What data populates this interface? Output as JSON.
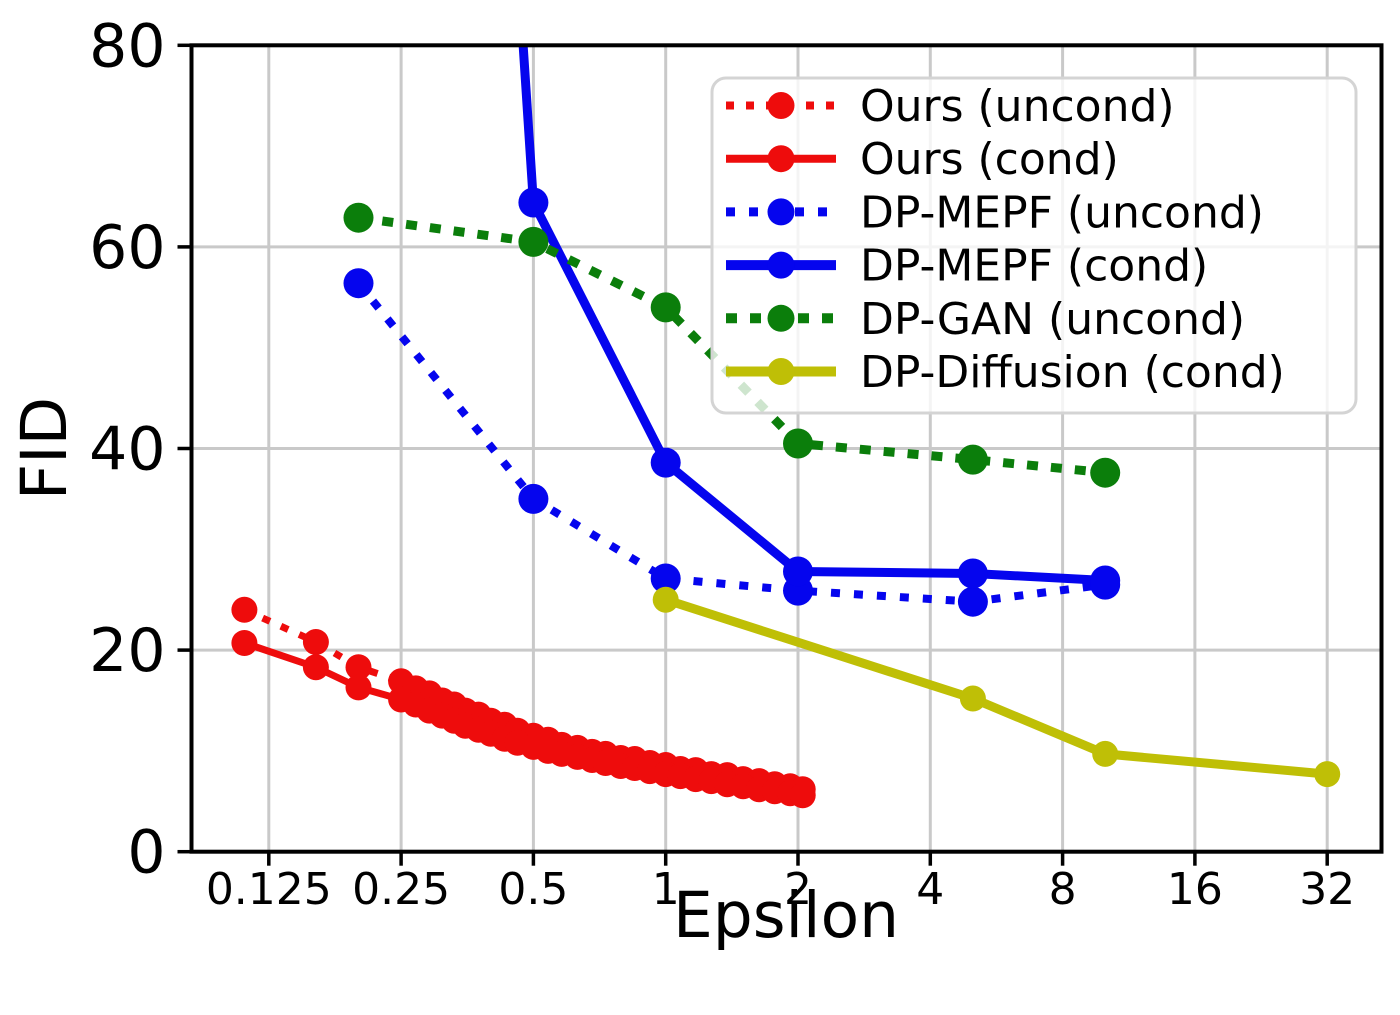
{
  "figure": {
    "kind": "matplotlib-style line chart",
    "background": "#ffffff"
  },
  "chart_data": {
    "type": "line",
    "title": "",
    "xlabel": "Epsilon",
    "ylabel": "FID",
    "x_scale": "log2",
    "ylim": [
      0,
      80
    ],
    "grid": true,
    "grid_color": "#c9c9c9",
    "legend_position": "upper right",
    "x_ticks": [
      {
        "label": "0.125",
        "value": 0.125
      },
      {
        "label": "0.25",
        "value": 0.25
      },
      {
        "label": "0.5",
        "value": 0.5
      },
      {
        "label": "1",
        "value": 1
      },
      {
        "label": "2",
        "value": 2
      },
      {
        "label": "4",
        "value": 4
      },
      {
        "label": "8",
        "value": 8
      },
      {
        "label": "16",
        "value": 16
      },
      {
        "label": "32",
        "value": 32
      }
    ],
    "y_ticks": [
      {
        "label": "0",
        "value": 0
      },
      {
        "label": "20",
        "value": 20
      },
      {
        "label": "40",
        "value": 40
      },
      {
        "label": "60",
        "value": 60
      },
      {
        "label": "80",
        "value": 80
      }
    ],
    "series": [
      {
        "name": "Ours (uncond)",
        "color": "#ee0c0c",
        "style": "dotted",
        "x": [
          0.11,
          0.16,
          0.2,
          0.25,
          0.27,
          0.29,
          0.31,
          0.33,
          0.35,
          0.375,
          0.4,
          0.43,
          0.46,
          0.5,
          0.54,
          0.58,
          0.63,
          0.68,
          0.73,
          0.79,
          0.85,
          0.92,
          1.0,
          1.08,
          1.17,
          1.27,
          1.38,
          1.5,
          1.63,
          1.77,
          1.92,
          2.05
        ],
        "y": [
          24.0,
          20.8,
          18.3,
          16.9,
          16.2,
          15.7,
          15.0,
          14.6,
          14.0,
          13.6,
          13.0,
          12.6,
          12.0,
          11.5,
          11.1,
          10.6,
          10.3,
          9.9,
          9.7,
          9.3,
          9.2,
          8.8,
          8.6,
          8.2,
          8.1,
          7.7,
          7.6,
          7.2,
          7.0,
          6.7,
          6.5,
          6.2
        ]
      },
      {
        "name": "Ours (cond)",
        "color": "#ee0c0c",
        "style": "solid",
        "x": [
          0.11,
          0.16,
          0.2,
          0.25,
          0.27,
          0.29,
          0.31,
          0.33,
          0.35,
          0.375,
          0.4,
          0.43,
          0.46,
          0.5,
          0.54,
          0.58,
          0.63,
          0.68,
          0.73,
          0.79,
          0.85,
          0.92,
          1.0,
          1.08,
          1.17,
          1.27,
          1.38,
          1.5,
          1.63,
          1.77,
          1.92,
          2.05
        ],
        "y": [
          20.7,
          18.3,
          16.3,
          15.1,
          14.6,
          14.0,
          13.5,
          13.0,
          12.5,
          12.1,
          11.7,
          11.2,
          10.8,
          10.4,
          10.0,
          9.7,
          9.4,
          9.1,
          8.8,
          8.5,
          8.3,
          8.0,
          7.7,
          7.5,
          7.2,
          7.0,
          6.7,
          6.5,
          6.2,
          6.0,
          5.8,
          5.6
        ]
      },
      {
        "name": "DP-MEPF (uncond)",
        "color": "#0505ee",
        "style": "dotted",
        "x": [
          0.2,
          0.5,
          1,
          2,
          5,
          10
        ],
        "y": [
          56.4,
          35.0,
          27.1,
          25.9,
          24.8,
          26.5
        ]
      },
      {
        "name": "DP-MEPF (cond)",
        "color": "#0505ee",
        "style": "solid",
        "x": [
          0.5,
          1,
          2,
          5,
          10
        ],
        "y": [
          64.4,
          38.6,
          27.8,
          27.6,
          26.9
        ],
        "offscreen_entry_point": {
          "x": 0.2,
          "y": 330
        }
      },
      {
        "name": "DP-GAN (uncond)",
        "color": "#0b7e0b",
        "style": "dotted",
        "x": [
          0.2,
          0.5,
          1,
          2,
          5,
          10
        ],
        "y": [
          62.9,
          60.5,
          54.0,
          40.5,
          38.9,
          37.6
        ]
      },
      {
        "name": "DP-Diffusion (cond)",
        "color": "#bfbf06",
        "style": "solid",
        "x": [
          1,
          5,
          10,
          32
        ],
        "y": [
          25.0,
          15.2,
          9.7,
          7.7
        ]
      }
    ]
  }
}
